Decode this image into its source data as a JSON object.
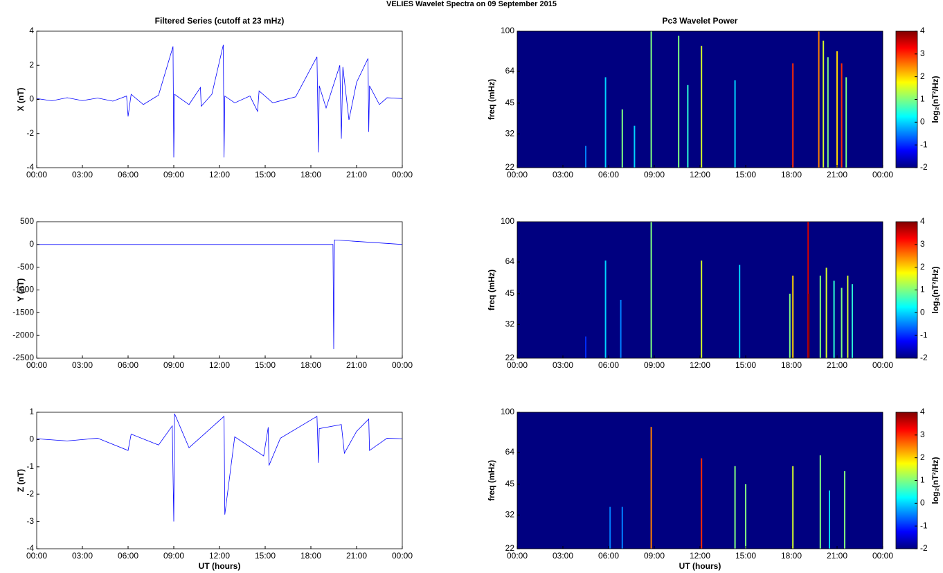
{
  "title": "VELIES Wavelet Spectra on 09 September 2015",
  "chart_data": [
    {
      "type": "line",
      "title": "Filtered Series (cutoff at 23 mHz)",
      "ylabel": "X (nT)",
      "color": "#0000ff",
      "x": [
        0,
        1,
        2,
        3,
        4,
        5,
        5.9,
        6.0,
        6.2,
        7,
        8,
        8.95,
        9.0,
        9.05,
        10,
        10.75,
        10.8,
        11.5,
        12.25,
        12.3,
        12.35,
        13,
        14,
        14.5,
        14.6,
        15.5,
        17,
        18.4,
        18.5,
        18.55,
        19,
        19.9,
        20.0,
        20.1,
        20.5,
        21,
        21.75,
        21.8,
        21.85,
        22.5,
        23,
        24
      ],
      "values": [
        0.05,
        -0.08,
        0.1,
        -0.07,
        0.08,
        -0.1,
        0.2,
        -1.0,
        0.3,
        -0.3,
        0.25,
        3.1,
        -3.4,
        0.3,
        -0.3,
        0.7,
        -0.4,
        0.3,
        3.2,
        -3.4,
        0.2,
        -0.2,
        0.2,
        -0.7,
        0.5,
        -0.2,
        0.15,
        2.5,
        -3.1,
        0.8,
        -0.5,
        2.0,
        -2.3,
        1.9,
        -1.2,
        1.0,
        2.4,
        -1.9,
        0.8,
        -0.3,
        0.1,
        0.05
      ],
      "xlim": [
        0,
        24
      ],
      "xticks": [
        {
          "value": 0,
          "label": "00:00"
        },
        {
          "value": 3,
          "label": "03:00"
        },
        {
          "value": 6,
          "label": "06:00"
        },
        {
          "value": 9,
          "label": "09:00"
        },
        {
          "value": 12,
          "label": "12:00"
        },
        {
          "value": 15,
          "label": "15:00"
        },
        {
          "value": 18,
          "label": "18:00"
        },
        {
          "value": 21,
          "label": "21:00"
        },
        {
          "value": 24,
          "label": "00:00"
        }
      ],
      "ylim": [
        -4,
        4
      ],
      "yticks": [
        -4,
        -2,
        0,
        2,
        4
      ]
    },
    {
      "type": "line",
      "ylabel": "Y (nT)",
      "color": "#0000ff",
      "x": [
        0,
        19.45,
        19.5,
        19.55,
        24
      ],
      "values": [
        0,
        0,
        -2300,
        100,
        0
      ],
      "xlim": [
        0,
        24
      ],
      "xticks": [
        {
          "value": 0,
          "label": "00:00"
        },
        {
          "value": 3,
          "label": "03:00"
        },
        {
          "value": 6,
          "label": "06:00"
        },
        {
          "value": 9,
          "label": "09:00"
        },
        {
          "value": 12,
          "label": "12:00"
        },
        {
          "value": 15,
          "label": "15:00"
        },
        {
          "value": 18,
          "label": "18:00"
        },
        {
          "value": 21,
          "label": "21:00"
        },
        {
          "value": 24,
          "label": "00:00"
        }
      ],
      "ylim": [
        -2500,
        500
      ],
      "yticks": [
        -2500,
        -2000,
        -1500,
        -1000,
        -500,
        0,
        500
      ]
    },
    {
      "type": "line",
      "ylabel": "Z (nT)",
      "xlabel": "UT (hours)",
      "color": "#0000ff",
      "x": [
        0,
        2,
        4,
        6.0,
        6.2,
        8,
        8.9,
        9.0,
        9.05,
        10,
        12.3,
        12.35,
        13,
        14.9,
        15.2,
        15.25,
        16,
        18.4,
        18.5,
        18.55,
        20,
        20.2,
        21,
        21.8,
        21.85,
        23,
        24
      ],
      "values": [
        0.03,
        -0.05,
        0.05,
        -0.4,
        0.2,
        -0.2,
        0.5,
        -3.0,
        0.95,
        -0.3,
        0.85,
        -2.75,
        0.1,
        -0.6,
        0.45,
        -0.95,
        0.05,
        0.85,
        -0.85,
        0.4,
        0.55,
        -0.5,
        0.3,
        0.75,
        -0.4,
        0.05,
        0.03
      ],
      "xlim": [
        0,
        24
      ],
      "xticks": [
        {
          "value": 0,
          "label": "00:00"
        },
        {
          "value": 3,
          "label": "03:00"
        },
        {
          "value": 6,
          "label": "06:00"
        },
        {
          "value": 9,
          "label": "09:00"
        },
        {
          "value": 12,
          "label": "12:00"
        },
        {
          "value": 15,
          "label": "15:00"
        },
        {
          "value": 18,
          "label": "18:00"
        },
        {
          "value": 21,
          "label": "21:00"
        },
        {
          "value": 24,
          "label": "00:00"
        }
      ],
      "ylim": [
        -4,
        1
      ],
      "yticks": [
        -4,
        -3,
        -2,
        -1,
        0,
        1
      ]
    },
    {
      "type": "heatmap",
      "title": "Pc3 Wavelet Power",
      "ylabel": "freq (mHz)",
      "colorbar_label": "log₂(nT²/Hz)",
      "log_y": true,
      "x": [
        4.5,
        5.8,
        6.9,
        7.7,
        8.8,
        10.6,
        11.2,
        12.1,
        14.3,
        18.1,
        19.8,
        20.1,
        20.4,
        21.0,
        21.3,
        21.6
      ],
      "tops": [
        28,
        60,
        42,
        35,
        100,
        95,
        55,
        85,
        58,
        70,
        100,
        90,
        75,
        80,
        70,
        60
      ],
      "values": [
        -0.5,
        0,
        1,
        0,
        1,
        1,
        0.5,
        1.5,
        0,
        3,
        2.5,
        1.5,
        1,
        2,
        3,
        1
      ],
      "xlim": [
        0,
        24
      ],
      "xticks": [
        {
          "value": 0,
          "label": "00:00"
        },
        {
          "value": 3,
          "label": "03:00"
        },
        {
          "value": 6,
          "label": "06:00"
        },
        {
          "value": 9,
          "label": "09:00"
        },
        {
          "value": 12,
          "label": "12:00"
        },
        {
          "value": 15,
          "label": "15:00"
        },
        {
          "value": 18,
          "label": "18:00"
        },
        {
          "value": 21,
          "label": "21:00"
        },
        {
          "value": 24,
          "label": "00:00"
        }
      ],
      "ylim": [
        22,
        100
      ],
      "yticks": [
        22,
        32,
        45,
        64,
        100
      ],
      "clim": [
        -2,
        4
      ],
      "cticks": [
        -2,
        -1,
        0,
        1,
        2,
        3,
        4
      ]
    },
    {
      "type": "heatmap",
      "ylabel": "freq (mHz)",
      "colorbar_label": "log₂(nT²/Hz)",
      "log_y": true,
      "x": [
        4.5,
        5.8,
        6.8,
        8.8,
        12.1,
        14.6,
        17.9,
        18.1,
        19.1,
        19.15,
        19.9,
        20.3,
        20.8,
        21.3,
        21.7,
        22.0
      ],
      "tops": [
        28,
        65,
        42,
        100,
        65,
        62,
        45,
        55,
        100,
        45,
        55,
        60,
        52,
        48,
        55,
        50
      ],
      "values": [
        -1,
        0,
        -0.5,
        1,
        1.5,
        0,
        1,
        2,
        3.5,
        4,
        1,
        1.5,
        0.5,
        1,
        1.5,
        0.5
      ],
      "xlim": [
        0,
        24
      ],
      "xticks": [
        {
          "value": 0,
          "label": "00:00"
        },
        {
          "value": 3,
          "label": "03:00"
        },
        {
          "value": 6,
          "label": "06:00"
        },
        {
          "value": 9,
          "label": "09:00"
        },
        {
          "value": 12,
          "label": "12:00"
        },
        {
          "value": 15,
          "label": "15:00"
        },
        {
          "value": 18,
          "label": "18:00"
        },
        {
          "value": 21,
          "label": "21:00"
        },
        {
          "value": 24,
          "label": "00:00"
        }
      ],
      "ylim": [
        22,
        100
      ],
      "yticks": [
        22,
        32,
        45,
        64,
        100
      ],
      "clim": [
        -2,
        4
      ],
      "cticks": [
        -2,
        -1,
        0,
        1,
        2,
        3,
        4
      ]
    },
    {
      "type": "heatmap",
      "ylabel": "freq (mHz)",
      "xlabel": "UT (hours)",
      "colorbar_label": "log₂(nT²/Hz)",
      "log_y": true,
      "x": [
        6.1,
        6.9,
        8.8,
        12.1,
        14.3,
        15.0,
        18.1,
        19.9,
        20.5,
        21.5
      ],
      "tops": [
        35,
        35,
        85,
        60,
        55,
        45,
        55,
        62,
        42,
        52
      ],
      "values": [
        -0.5,
        -0.5,
        2.5,
        3,
        1,
        1,
        1.5,
        1,
        0,
        1
      ],
      "xlim": [
        0,
        24
      ],
      "xticks": [
        {
          "value": 0,
          "label": "00:00"
        },
        {
          "value": 3,
          "label": "03:00"
        },
        {
          "value": 6,
          "label": "06:00"
        },
        {
          "value": 9,
          "label": "09:00"
        },
        {
          "value": 12,
          "label": "12:00"
        },
        {
          "value": 15,
          "label": "15:00"
        },
        {
          "value": 18,
          "label": "18:00"
        },
        {
          "value": 21,
          "label": "21:00"
        },
        {
          "value": 24,
          "label": "00:00"
        }
      ],
      "ylim": [
        22,
        100
      ],
      "yticks": [
        22,
        32,
        45,
        64,
        100
      ],
      "clim": [
        -2,
        4
      ],
      "cticks": [
        -2,
        -1,
        0,
        1,
        2,
        3,
        4
      ]
    }
  ]
}
